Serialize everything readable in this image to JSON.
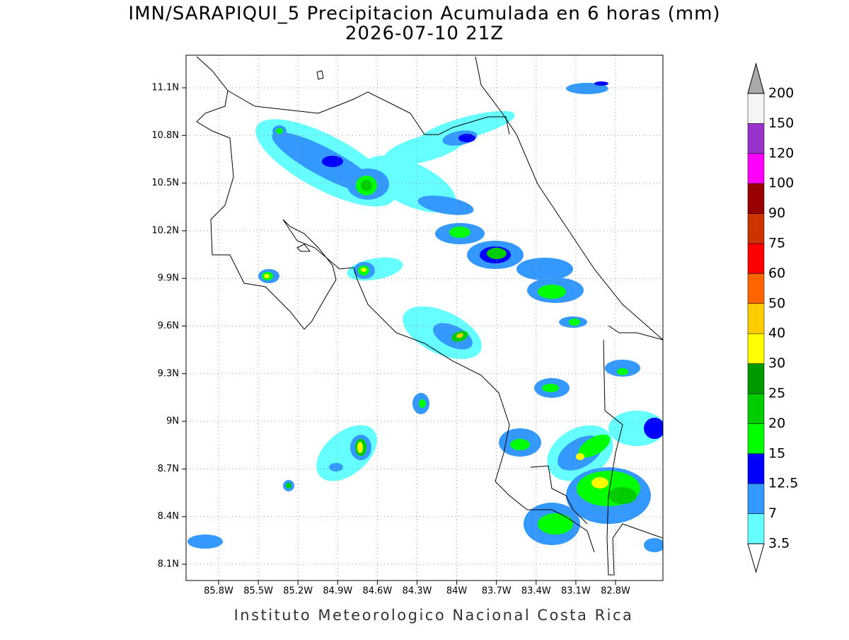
{
  "title": "IMN/SARAPIQUI_5 Precipitacion Acumulada en 6 horas (mm)",
  "subtitle": "2026-07-10 21Z",
  "footer": "Instituto Meteorologico Nacional Costa Rica",
  "lon_ticks": [
    "85.8W",
    "85.5W",
    "85.2W",
    "84.9W",
    "84.6W",
    "84.3W",
    "84W",
    "83.7W",
    "83.4W",
    "83.1W",
    "82.8W"
  ],
  "lat_ticks": [
    "11.1N",
    "10.8N",
    "10.5N",
    "10.2N",
    "9.9N",
    "9.6N",
    "9.3N",
    "9N",
    "8.7N",
    "8.4N",
    "8.1N"
  ],
  "colorbar": {
    "levels": [
      "3.5",
      "7",
      "12.5",
      "15",
      "20",
      "25",
      "30",
      "40",
      "50",
      "60",
      "75",
      "90",
      "100",
      "120",
      "150",
      "200"
    ],
    "colors": [
      "#66ffff",
      "#3399ff",
      "#0000ff",
      "#00ff00",
      "#00cc00",
      "#009900",
      "#ffff00",
      "#ffcc00",
      "#ff6600",
      "#ff0000",
      "#cc3300",
      "#990000",
      "#ff00ff",
      "#9933cc",
      "#f5f5f5"
    ],
    "over_color": "#aaaaaa",
    "under_color": "#ffffff"
  }
}
